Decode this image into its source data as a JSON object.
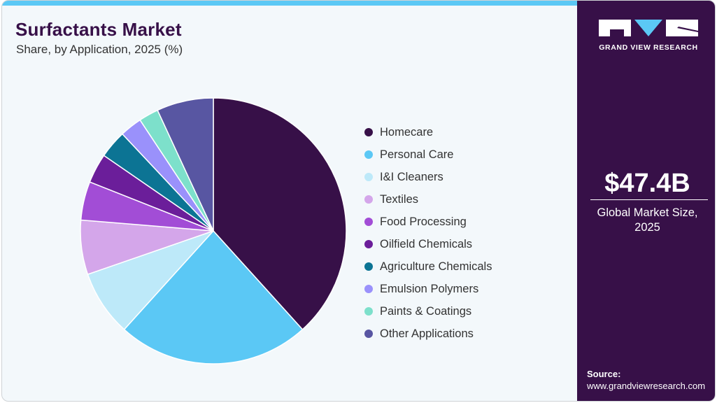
{
  "header": {
    "title": "Surfactants Market",
    "subtitle": "Share, by Application, 2025 (%)"
  },
  "sidebar": {
    "logo_text": "GRAND VIEW RESEARCH",
    "metric_value": "$47.4B",
    "metric_label_line1": "Global Market Size,",
    "metric_label_line2": "2025",
    "source_label": "Source:",
    "source_url": "www.grandviewresearch.com"
  },
  "colors": {
    "brand_dark": "#371048",
    "accent": "#5bc8f5",
    "background": "#f3f8fb"
  },
  "legend": [
    {
      "label": "Homecare",
      "color": "#371048"
    },
    {
      "label": "Personal Care",
      "color": "#5bc8f5"
    },
    {
      "label": "I&I Cleaners",
      "color": "#bde9f9"
    },
    {
      "label": "Textiles",
      "color": "#d4a6ea"
    },
    {
      "label": "Food Processing",
      "color": "#a24dd6"
    },
    {
      "label": "Oilfield Chemicals",
      "color": "#6b1e9a"
    },
    {
      "label": "Agriculture Chemicals",
      "color": "#0c7494"
    },
    {
      "label": "Emulsion Polymers",
      "color": "#9a91fb"
    },
    {
      "label": "Paints & Coatings",
      "color": "#7de0cb"
    },
    {
      "label": "Other Applications",
      "color": "#5856a2"
    }
  ],
  "chart_data": {
    "type": "pie",
    "title": "Surfactants Market",
    "subtitle": "Share, by Application, 2025 (%)",
    "categories": [
      "Homecare",
      "Personal Care",
      "I&I Cleaners",
      "Textiles",
      "Food Processing",
      "Oilfield Chemicals",
      "Agriculture Chemicals",
      "Emulsion Polymers",
      "Paints & Coatings",
      "Other Applications"
    ],
    "values": [
      38.3,
      23.4,
      8.0,
      6.6,
      4.7,
      3.6,
      3.4,
      2.7,
      2.4,
      6.9
    ],
    "colors": [
      "#371048",
      "#5bc8f5",
      "#bde9f9",
      "#d4a6ea",
      "#a24dd6",
      "#6b1e9a",
      "#0c7494",
      "#9a91fb",
      "#7de0cb",
      "#5856a2"
    ],
    "start_angle": "12 o'clock, clockwise",
    "legend_position": "right",
    "total_market_size": "$47.4B"
  }
}
